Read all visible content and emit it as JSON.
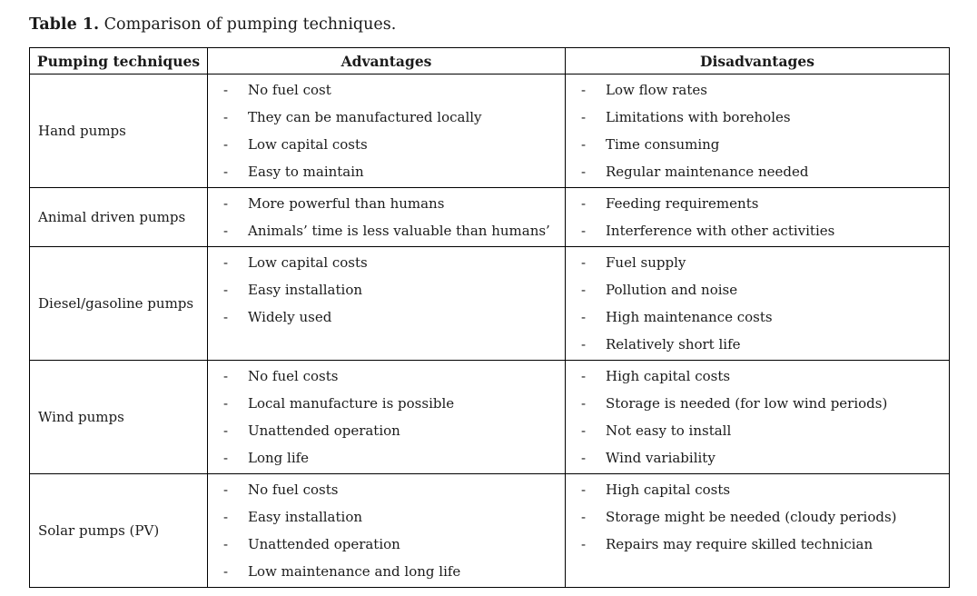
{
  "caption": {
    "label": "Table 1.",
    "text": " Comparison of pumping techniques."
  },
  "table": {
    "bullet": "-",
    "headers": [
      "Pumping techniques",
      "Advantages",
      "Disadvantages"
    ],
    "rows": [
      {
        "technique": "Hand pumps",
        "advantages": [
          "No fuel cost",
          "They can be manufactured locally",
          "Low capital costs",
          "Easy to maintain"
        ],
        "disadvantages": [
          "Low flow rates",
          "Limitations with boreholes",
          "Time consuming",
          "Regular maintenance needed"
        ]
      },
      {
        "technique": "Animal driven pumps",
        "advantages": [
          "More powerful than humans",
          "Animals’ time is less valuable than humans’"
        ],
        "disadvantages": [
          "Feeding requirements",
          "Interference with other activities"
        ]
      },
      {
        "technique": "Diesel/gasoline pumps",
        "advantages": [
          "Low capital costs",
          "Easy installation",
          "Widely used"
        ],
        "disadvantages": [
          "Fuel supply",
          "Pollution and noise",
          "High maintenance costs",
          "Relatively short life"
        ]
      },
      {
        "technique": "Wind pumps",
        "advantages": [
          "No fuel costs",
          "Local manufacture is possible",
          "Unattended operation",
          "Long life"
        ],
        "disadvantages": [
          "High capital costs",
          "Storage is needed (for low wind periods)",
          "Not easy to install",
          "Wind variability"
        ]
      },
      {
        "technique": "Solar pumps (PV)",
        "advantages": [
          "No fuel costs",
          "Easy installation",
          "Unattended operation",
          "Low maintenance and long life"
        ],
        "disadvantages": [
          "High capital costs",
          "Storage might be needed (cloudy periods)",
          "Repairs may require skilled technician"
        ]
      }
    ],
    "colors": {
      "border": "#000000",
      "text": "#1b1b1b",
      "background": "#ffffff"
    }
  }
}
